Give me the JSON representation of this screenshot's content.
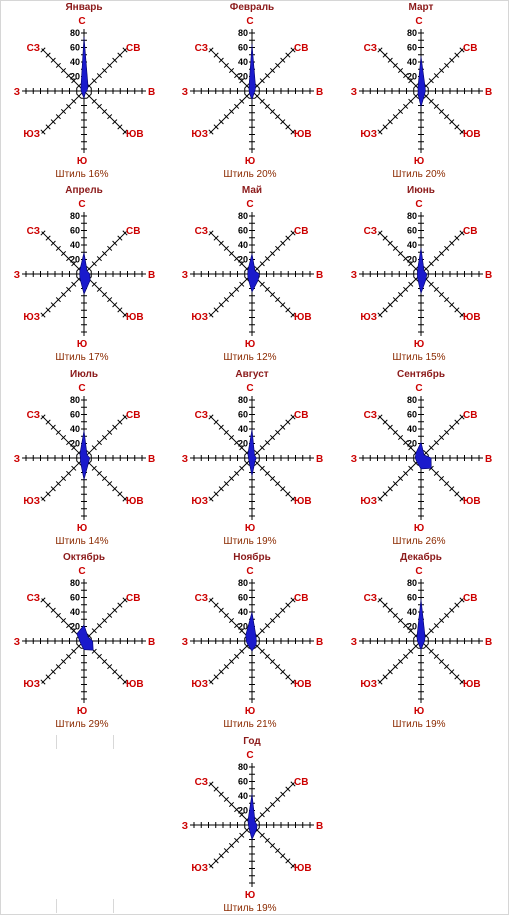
{
  "style": {
    "label_color": "#cc0000",
    "title_color": "#8b1a1a",
    "calm_color": "#8b2a00",
    "fill_color": "#1a1acc",
    "axis_color": "#000000"
  },
  "chart_data": [
    {
      "type": "radar",
      "title": "Январь",
      "calm": "Штиль 16%",
      "directions": [
        "С",
        "СВ",
        "В",
        "ЮВ",
        "Ю",
        "ЮЗ",
        "З",
        "СЗ"
      ],
      "ticks": [
        "20",
        "40",
        "60",
        "80"
      ],
      "rmax": 80,
      "values": [
        75,
        8,
        4,
        3,
        10,
        4,
        4,
        6
      ]
    },
    {
      "type": "radar",
      "title": "Февраль",
      "calm": "Штиль 20%",
      "directions": [
        "С",
        "СВ",
        "В",
        "ЮВ",
        "Ю",
        "ЮЗ",
        "З",
        "СЗ"
      ],
      "ticks": [
        "20",
        "40",
        "60",
        "80"
      ],
      "rmax": 80,
      "values": [
        65,
        7,
        4,
        4,
        12,
        5,
        4,
        6
      ]
    },
    {
      "type": "radar",
      "title": "Март",
      "calm": "Штиль 20%",
      "directions": [
        "С",
        "СВ",
        "В",
        "ЮВ",
        "Ю",
        "ЮЗ",
        "З",
        "СЗ"
      ],
      "ticks": [
        "20",
        "40",
        "60",
        "80"
      ],
      "rmax": 80,
      "values": [
        48,
        8,
        6,
        7,
        22,
        6,
        4,
        6
      ]
    },
    {
      "type": "radar",
      "title": "Апрель",
      "calm": "Штиль 17%",
      "directions": [
        "С",
        "СВ",
        "В",
        "ЮВ",
        "Ю",
        "ЮЗ",
        "З",
        "СЗ"
      ],
      "ticks": [
        "20",
        "40",
        "60",
        "80"
      ],
      "rmax": 80,
      "values": [
        30,
        6,
        8,
        12,
        28,
        8,
        6,
        8
      ]
    },
    {
      "type": "radar",
      "title": "Май",
      "calm": "Штиль 12%",
      "directions": [
        "С",
        "СВ",
        "В",
        "ЮВ",
        "Ю",
        "ЮЗ",
        "З",
        "СЗ"
      ],
      "ticks": [
        "20",
        "40",
        "60",
        "80"
      ],
      "rmax": 80,
      "values": [
        28,
        6,
        10,
        12,
        25,
        8,
        6,
        8
      ]
    },
    {
      "type": "radar",
      "title": "Июнь",
      "calm": "Штиль 15%",
      "directions": [
        "С",
        "СВ",
        "В",
        "ЮВ",
        "Ю",
        "ЮЗ",
        "З",
        "СЗ"
      ],
      "ticks": [
        "20",
        "40",
        "60",
        "80"
      ],
      "rmax": 80,
      "values": [
        36,
        6,
        8,
        10,
        27,
        7,
        5,
        7
      ]
    },
    {
      "type": "radar",
      "title": "Июль",
      "calm": "Штиль 14%",
      "directions": [
        "С",
        "СВ",
        "В",
        "ЮВ",
        "Ю",
        "ЮЗ",
        "З",
        "СЗ"
      ],
      "ticks": [
        "20",
        "40",
        "60",
        "80"
      ],
      "rmax": 80,
      "values": [
        38,
        6,
        8,
        9,
        30,
        7,
        5,
        8
      ]
    },
    {
      "type": "radar",
      "title": "Август",
      "calm": "Штиль 19%",
      "directions": [
        "С",
        "СВ",
        "В",
        "ЮВ",
        "Ю",
        "ЮЗ",
        "З",
        "СЗ"
      ],
      "ticks": [
        "20",
        "40",
        "60",
        "80"
      ],
      "rmax": 80,
      "values": [
        40,
        5,
        6,
        6,
        25,
        6,
        5,
        8
      ]
    },
    {
      "type": "radar",
      "title": "Сентябрь",
      "calm": "Штиль 26%",
      "directions": [
        "С",
        "СВ",
        "В",
        "ЮВ",
        "Ю",
        "ЮЗ",
        "З",
        "СЗ"
      ],
      "ticks": [
        "20",
        "40",
        "60",
        "80"
      ],
      "rmax": 80,
      "values": [
        22,
        6,
        14,
        20,
        15,
        8,
        8,
        10
      ]
    },
    {
      "type": "radar",
      "title": "Октябрь",
      "calm": "Штиль 29%",
      "directions": [
        "С",
        "СВ",
        "В",
        "ЮВ",
        "Ю",
        "ЮЗ",
        "З",
        "СЗ"
      ],
      "ticks": [
        "20",
        "40",
        "60",
        "80"
      ],
      "rmax": 80,
      "values": [
        22,
        8,
        12,
        18,
        12,
        6,
        6,
        14
      ]
    },
    {
      "type": "radar",
      "title": "Ноябрь",
      "calm": "Штиль 21%",
      "directions": [
        "С",
        "СВ",
        "В",
        "ЮВ",
        "Ю",
        "ЮЗ",
        "З",
        "СЗ"
      ],
      "ticks": [
        "20",
        "40",
        "60",
        "80"
      ],
      "rmax": 80,
      "values": [
        40,
        8,
        6,
        8,
        14,
        8,
        8,
        12
      ]
    },
    {
      "type": "radar",
      "title": "Декабрь",
      "calm": "Штиль 19%",
      "directions": [
        "С",
        "СВ",
        "В",
        "ЮВ",
        "Ю",
        "ЮЗ",
        "З",
        "СЗ"
      ],
      "ticks": [
        "20",
        "40",
        "60",
        "80"
      ],
      "rmax": 80,
      "values": [
        58,
        8,
        5,
        5,
        12,
        5,
        5,
        8
      ]
    },
    {
      "type": "radar",
      "title": "Год",
      "calm": "Штиль 19%",
      "directions": [
        "С",
        "СВ",
        "В",
        "ЮВ",
        "Ю",
        "ЮЗ",
        "З",
        "СЗ"
      ],
      "ticks": [
        "20",
        "40",
        "60",
        "80"
      ],
      "rmax": 80,
      "values": [
        43,
        6,
        7,
        9,
        20,
        6,
        5,
        8
      ]
    }
  ]
}
